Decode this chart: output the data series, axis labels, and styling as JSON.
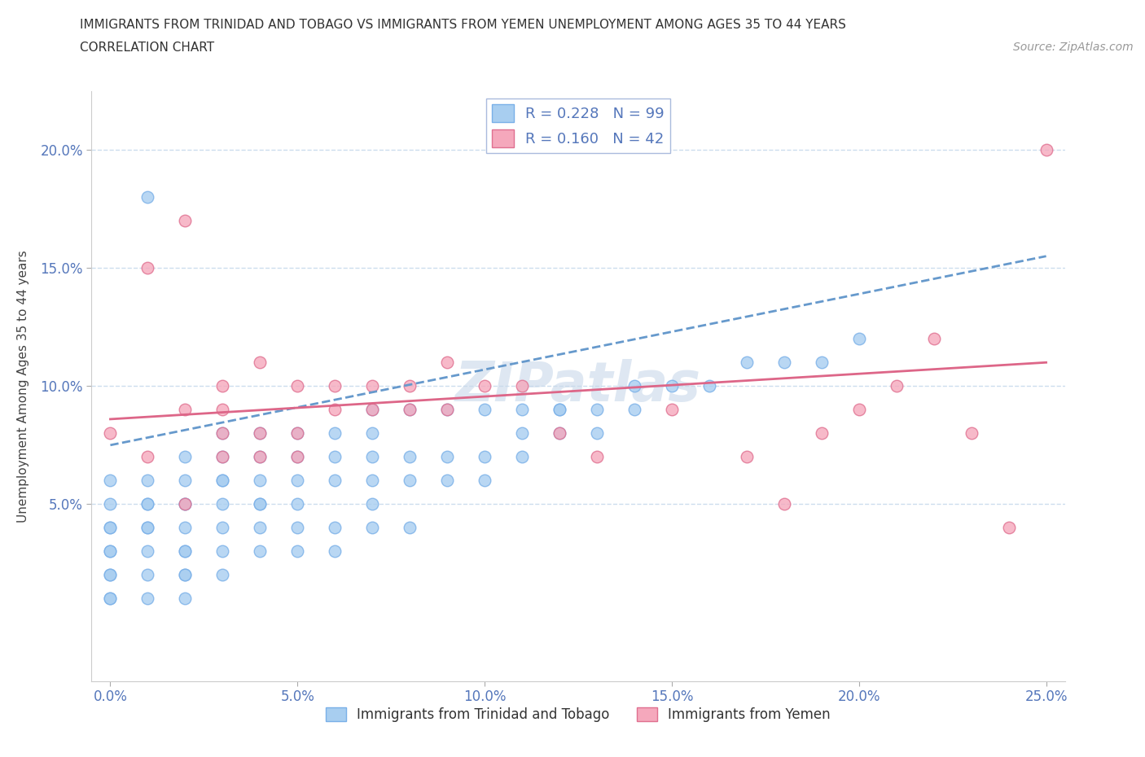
{
  "title_line1": "IMMIGRANTS FROM TRINIDAD AND TOBAGO VS IMMIGRANTS FROM YEMEN UNEMPLOYMENT AMONG AGES 35 TO 44 YEARS",
  "title_line2": "CORRELATION CHART",
  "source_text": "Source: ZipAtlas.com",
  "ylabel": "Unemployment Among Ages 35 to 44 years",
  "watermark": "ZIPatlas",
  "r_tt": 0.228,
  "n_tt": 99,
  "r_ye": 0.16,
  "n_ye": 42,
  "color_tt": "#a8cef0",
  "color_tt_edge": "#7ab0e8",
  "color_ye": "#f5a8bc",
  "color_ye_edge": "#e07090",
  "color_tt_line": "#6699cc",
  "color_ye_line": "#dd6688",
  "xlim": [
    -0.005,
    0.255
  ],
  "ylim": [
    -0.025,
    0.225
  ],
  "xticks": [
    0.0,
    0.05,
    0.1,
    0.15,
    0.2,
    0.25
  ],
  "yticks": [
    0.05,
    0.1,
    0.15,
    0.2
  ],
  "xticklabels": [
    "0.0%",
    "5.0%",
    "10.0%",
    "15.0%",
    "20.0%",
    "25.0%"
  ],
  "yticklabels": [
    "5.0%",
    "10.0%",
    "15.0%",
    "20.0%"
  ],
  "legend_label_tt": "Immigrants from Trinidad and Tobago",
  "legend_label_ye": "Immigrants from Yemen",
  "tt_x": [
    0.0,
    0.0,
    0.0,
    0.0,
    0.0,
    0.0,
    0.0,
    0.0,
    0.0,
    0.0,
    0.01,
    0.01,
    0.01,
    0.01,
    0.01,
    0.01,
    0.01,
    0.01,
    0.01,
    0.02,
    0.02,
    0.02,
    0.02,
    0.02,
    0.02,
    0.02,
    0.02,
    0.02,
    0.02,
    0.03,
    0.03,
    0.03,
    0.03,
    0.03,
    0.03,
    0.03,
    0.03,
    0.04,
    0.04,
    0.04,
    0.04,
    0.04,
    0.04,
    0.04,
    0.05,
    0.05,
    0.05,
    0.05,
    0.05,
    0.05,
    0.06,
    0.06,
    0.06,
    0.06,
    0.06,
    0.07,
    0.07,
    0.07,
    0.07,
    0.07,
    0.07,
    0.08,
    0.08,
    0.08,
    0.08,
    0.09,
    0.09,
    0.09,
    0.1,
    0.1,
    0.1,
    0.11,
    0.11,
    0.11,
    0.12,
    0.12,
    0.12,
    0.13,
    0.13,
    0.14,
    0.14,
    0.15,
    0.16,
    0.17,
    0.18,
    0.19,
    0.2
  ],
  "tt_y": [
    0.01,
    0.01,
    0.02,
    0.02,
    0.03,
    0.03,
    0.04,
    0.04,
    0.05,
    0.06,
    0.01,
    0.02,
    0.03,
    0.04,
    0.04,
    0.05,
    0.05,
    0.06,
    0.18,
    0.01,
    0.02,
    0.02,
    0.03,
    0.03,
    0.04,
    0.05,
    0.05,
    0.06,
    0.07,
    0.02,
    0.03,
    0.04,
    0.05,
    0.06,
    0.06,
    0.07,
    0.08,
    0.03,
    0.04,
    0.05,
    0.05,
    0.06,
    0.07,
    0.08,
    0.03,
    0.04,
    0.05,
    0.06,
    0.07,
    0.08,
    0.03,
    0.04,
    0.06,
    0.07,
    0.08,
    0.04,
    0.05,
    0.06,
    0.07,
    0.08,
    0.09,
    0.04,
    0.06,
    0.07,
    0.09,
    0.06,
    0.07,
    0.09,
    0.06,
    0.07,
    0.09,
    0.07,
    0.08,
    0.09,
    0.08,
    0.09,
    0.09,
    0.08,
    0.09,
    0.09,
    0.1,
    0.1,
    0.1,
    0.11,
    0.11,
    0.11,
    0.12
  ],
  "ye_x": [
    0.0,
    0.01,
    0.01,
    0.02,
    0.02,
    0.02,
    0.03,
    0.03,
    0.03,
    0.03,
    0.04,
    0.04,
    0.04,
    0.05,
    0.05,
    0.05,
    0.06,
    0.06,
    0.07,
    0.07,
    0.08,
    0.08,
    0.09,
    0.09,
    0.1,
    0.11,
    0.12,
    0.13,
    0.15,
    0.17,
    0.18,
    0.19,
    0.2,
    0.21,
    0.22,
    0.23,
    0.24,
    0.25
  ],
  "ye_y": [
    0.08,
    0.07,
    0.15,
    0.05,
    0.09,
    0.17,
    0.07,
    0.08,
    0.09,
    0.1,
    0.07,
    0.08,
    0.11,
    0.07,
    0.08,
    0.1,
    0.09,
    0.1,
    0.09,
    0.1,
    0.09,
    0.1,
    0.09,
    0.11,
    0.1,
    0.1,
    0.08,
    0.07,
    0.09,
    0.07,
    0.05,
    0.08,
    0.09,
    0.1,
    0.12,
    0.08,
    0.04,
    0.2
  ],
  "tt_line_x0": 0.0,
  "tt_line_x1": 0.25,
  "tt_line_y0": 0.075,
  "tt_line_y1": 0.155,
  "ye_line_x0": 0.0,
  "ye_line_x1": 0.25,
  "ye_line_y0": 0.086,
  "ye_line_y1": 0.11,
  "grid_color": "#ccddee",
  "tick_color": "#5577bb",
  "title_color": "#333333",
  "title_fontsize": 11,
  "axis_label_fontsize": 11,
  "tick_fontsize": 12
}
